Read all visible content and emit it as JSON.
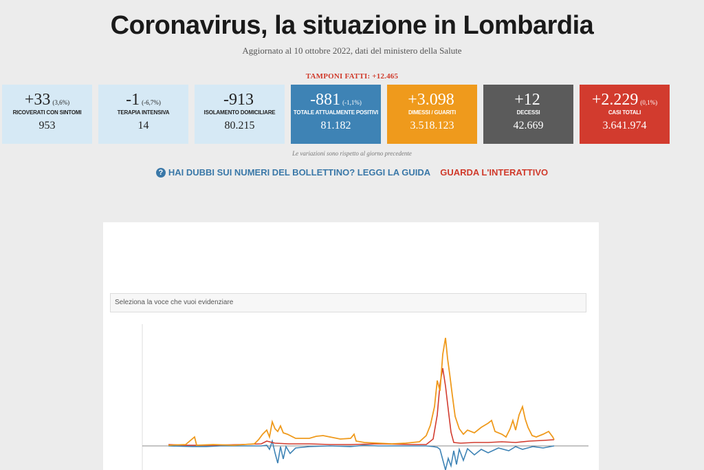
{
  "header": {
    "title": "Coronavirus, la situazione in Lombardia",
    "subtitle": "Aggiornato al 10 ottobre 2022, dati del ministero della Salute",
    "tamponi": "TAMPONI FATTI: +12.465"
  },
  "cards": [
    {
      "delta": "+33",
      "pct": "(3,6%)",
      "label": "RICOVERATI CON SINTOMI",
      "total": "953",
      "color": "#d6e9f5"
    },
    {
      "delta": "-1",
      "pct": "(-6,7%)",
      "label": "TERAPIA INTENSIVA",
      "total": "14",
      "color": "#d6e9f5"
    },
    {
      "delta": "-913",
      "pct": "",
      "label": "ISOLAMENTO DOMICILIARE",
      "total": "80.215",
      "color": "#d6e9f5"
    },
    {
      "delta": "-881",
      "pct": "(-1,1%)",
      "label": "TOTALE ATTUALMENTE POSITIVI",
      "total": "81.182",
      "color": "#3e83b5"
    },
    {
      "delta": "+3.098",
      "pct": "",
      "label": "DIMESSI / GUARITI",
      "total": "3.518.123",
      "color": "#ef9a1c"
    },
    {
      "delta": "+12",
      "pct": "",
      "label": "DECESSI",
      "total": "42.669",
      "color": "#5b5b5b"
    },
    {
      "delta": "+2.229",
      "pct": "(0,1%)",
      "label": "CASI TOTALI",
      "total": "3.641.974",
      "color": "#d23b2e"
    }
  ],
  "note": "Le variazioni sono rispetto al giorno precedente",
  "links": {
    "guide_icon": "question-circle-icon",
    "guide": "HAI DUBBI SUI NUMERI DEL BOLLETTINO? LEGGI LA GUIDA",
    "interactive": "GUARDA L'INTERATTIVO"
  },
  "chart_panel": {
    "select_placeholder": "Seleziona la voce che vuoi evidenziare"
  },
  "colors": {
    "orange": "#ef9a1c",
    "blue": "#3e83b5",
    "red": "#d23b2e",
    "gray": "#5b5b5b"
  }
}
